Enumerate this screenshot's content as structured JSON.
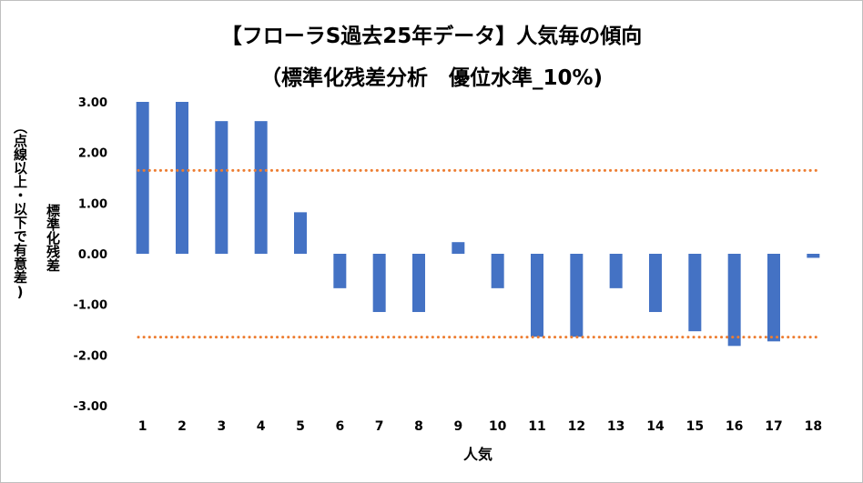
{
  "chart_data": {
    "type": "bar",
    "title": "【フローラS過去25年データ】人気毎の傾向",
    "subtitle": "（標準化残差分析　優位水準_10%)",
    "ylabel_line1": "標準化残差",
    "ylabel_line2": "（点線以上・以下で有意差)",
    "xlabel": "人気",
    "categories": [
      "1",
      "2",
      "3",
      "4",
      "5",
      "6",
      "7",
      "8",
      "9",
      "10",
      "11",
      "12",
      "13",
      "14",
      "15",
      "16",
      "17",
      "18"
    ],
    "values": [
      3.0,
      3.0,
      2.62,
      2.62,
      0.82,
      -0.68,
      -1.15,
      -1.15,
      0.23,
      -0.68,
      -1.64,
      -1.64,
      -0.68,
      -1.15,
      -1.53,
      -1.82,
      -1.73,
      -0.08
    ],
    "ylim": [
      -3,
      3
    ],
    "yticks": [
      "3.00",
      "2.00",
      "1.00",
      "0.00",
      "-1.00",
      "-2.00",
      "-3.00"
    ],
    "threshold_lines": [
      1.645,
      -1.645
    ],
    "bar_color": "#4472c4",
    "threshold_color": "#ed7d31",
    "grid": false,
    "legend": "none"
  }
}
